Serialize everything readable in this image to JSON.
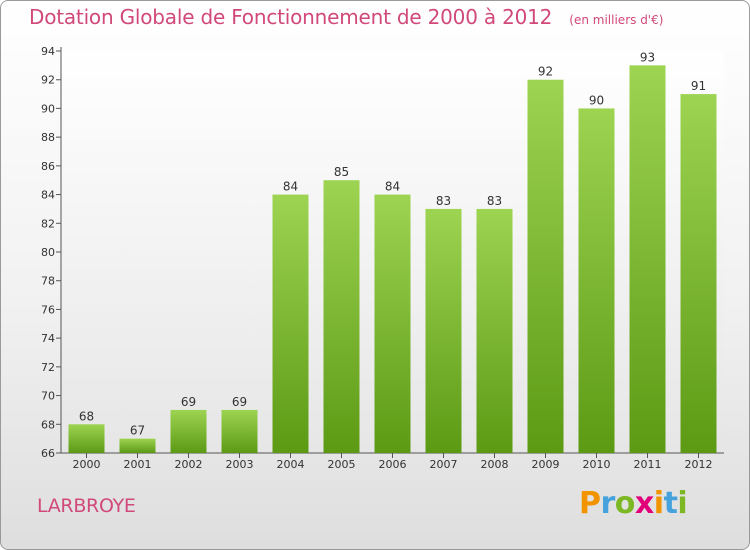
{
  "header": {
    "title": "Dotation Globale de Fonctionnement de 2000 à 2012",
    "unit": "(en milliers d'€)"
  },
  "footer": {
    "commune": "LARBROYE",
    "logo_text": "Proxiti"
  },
  "colors": {
    "accent": "#d1497a",
    "bar_top": "#9dd452",
    "bar_bottom": "#5c9a14",
    "axis": "#555555"
  },
  "chart_data": {
    "type": "bar",
    "title": "Dotation Globale de Fonctionnement de 2000 à 2012",
    "subtitle": "(en milliers d'€)",
    "xlabel": "",
    "ylabel": "",
    "categories": [
      "2000",
      "2001",
      "2002",
      "2003",
      "2004",
      "2005",
      "2006",
      "2007",
      "2008",
      "2009",
      "2010",
      "2011",
      "2012"
    ],
    "values": [
      68,
      67,
      69,
      69,
      84,
      85,
      84,
      83,
      83,
      92,
      90,
      93,
      91
    ],
    "ylim": [
      66,
      94
    ],
    "yticks": [
      66,
      68,
      70,
      72,
      74,
      76,
      78,
      80,
      82,
      84,
      86,
      88,
      90,
      92,
      94
    ],
    "grid": false,
    "legend": "none",
    "data_labels": true
  }
}
